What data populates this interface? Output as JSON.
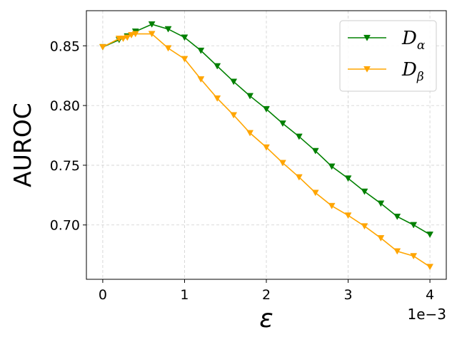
{
  "chart_data": {
    "type": "line",
    "xlabel": "ε",
    "ylabel": "AUROC",
    "x_multiplier_label": "1e−3",
    "xlim": [
      -0.0002,
      0.0042
    ],
    "ylim": [
      0.6545,
      0.8794
    ],
    "xticks": [
      0,
      0.001,
      0.002,
      0.003,
      0.004
    ],
    "xtick_labels": [
      "0",
      "1",
      "2",
      "3",
      "4"
    ],
    "yticks": [
      0.7,
      0.75,
      0.8,
      0.85
    ],
    "ytick_labels": [
      "0.70",
      "0.75",
      "0.80",
      "0.85"
    ],
    "grid": true,
    "legend_position": "top-right",
    "series": [
      {
        "name": "D_α",
        "legend_main": "D",
        "legend_sub": "α",
        "color": "#008000",
        "marker": "triangle-down",
        "x": [
          0,
          0.0002,
          0.0003,
          0.0004,
          0.0006,
          0.0008,
          0.001,
          0.0012,
          0.0014,
          0.0016,
          0.0018,
          0.002,
          0.0022,
          0.0024,
          0.0026,
          0.0028,
          0.003,
          0.0032,
          0.0034,
          0.0036,
          0.0038,
          0.004
        ],
        "y": [
          0.849,
          0.855,
          0.858,
          0.862,
          0.868,
          0.864,
          0.857,
          0.846,
          0.833,
          0.82,
          0.808,
          0.797,
          0.785,
          0.774,
          0.762,
          0.749,
          0.739,
          0.728,
          0.718,
          0.707,
          0.7,
          0.692
        ]
      },
      {
        "name": "D_β",
        "legend_main": "D",
        "legend_sub": "β",
        "color": "#FFA500",
        "marker": "triangle-down",
        "x": [
          0,
          0.0002,
          0.00025,
          0.0003,
          0.00035,
          0.0004,
          0.0006,
          0.0008,
          0.001,
          0.0012,
          0.0014,
          0.0016,
          0.0018,
          0.002,
          0.0022,
          0.0024,
          0.0026,
          0.0028,
          0.003,
          0.0032,
          0.0034,
          0.0036,
          0.0038,
          0.004
        ],
        "y": [
          0.849,
          0.856,
          0.856,
          0.857,
          0.859,
          0.86,
          0.86,
          0.848,
          0.839,
          0.822,
          0.806,
          0.792,
          0.777,
          0.765,
          0.752,
          0.74,
          0.727,
          0.716,
          0.708,
          0.699,
          0.689,
          0.678,
          0.674,
          0.665
        ]
      }
    ]
  }
}
